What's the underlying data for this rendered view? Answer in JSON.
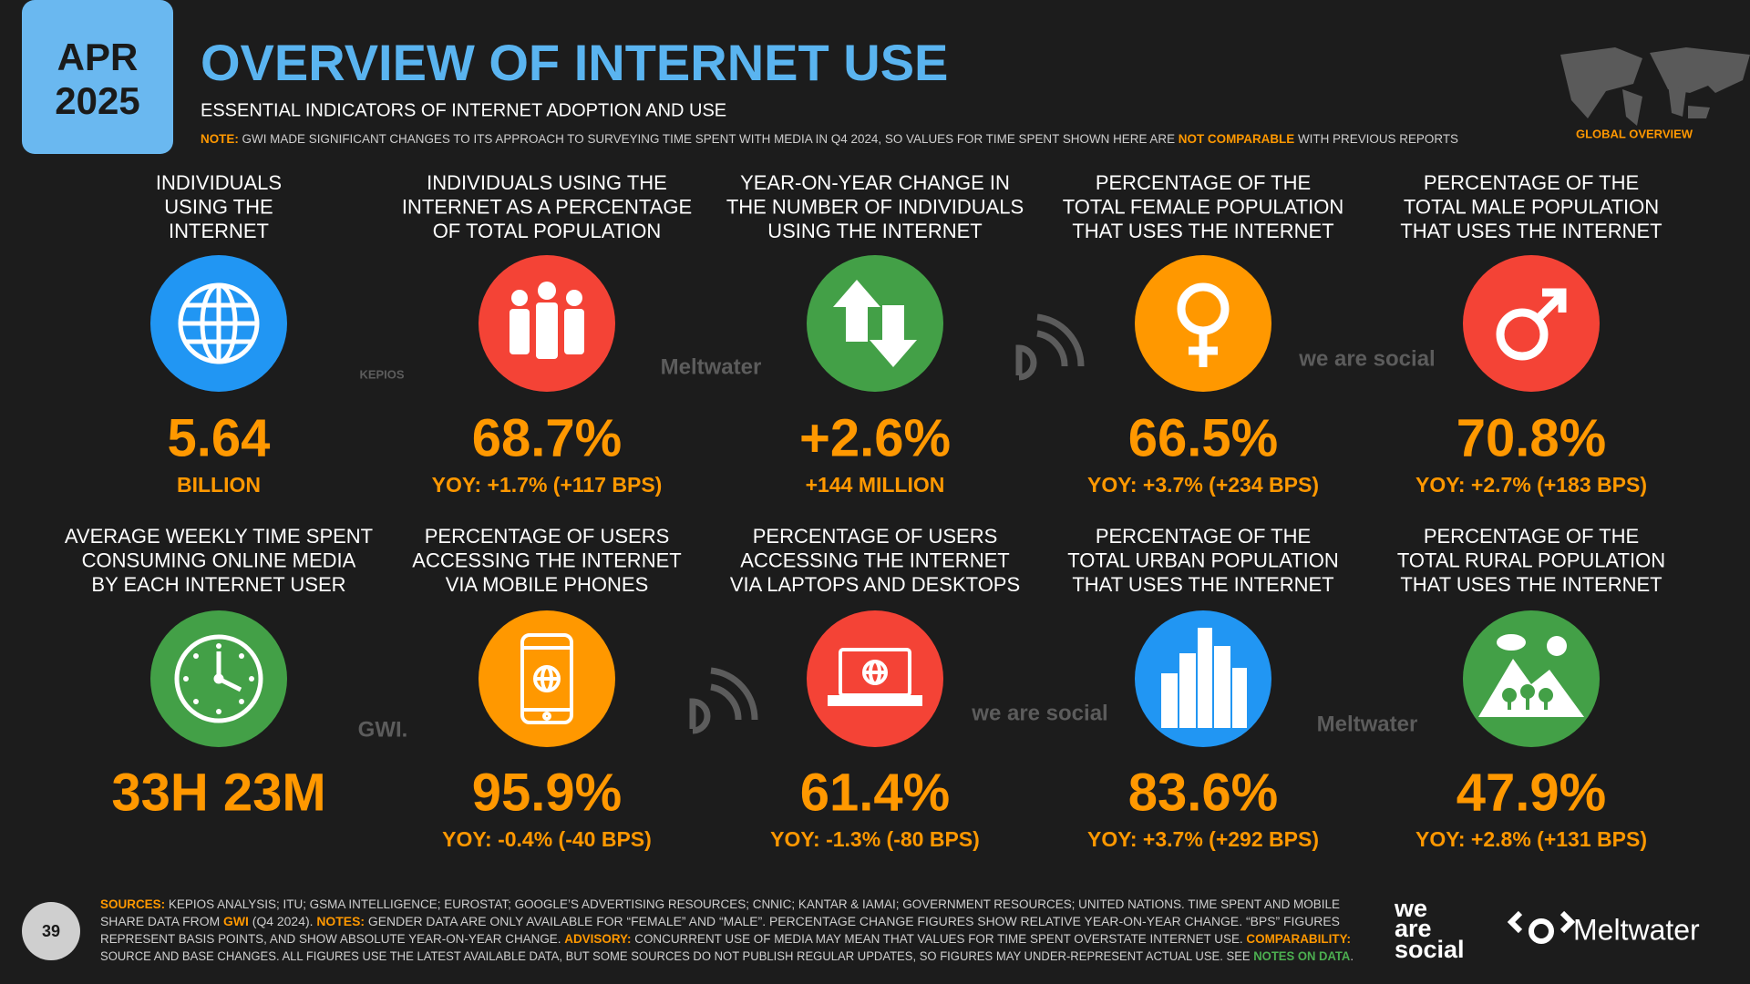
{
  "header": {
    "month": "APR",
    "year": "2025",
    "title": "OVERVIEW OF INTERNET USE",
    "subtitle": "ESSENTIAL INDICATORS OF INTERNET ADOPTION AND USE",
    "note": [
      {
        "text": "NOTE:",
        "kind": "highlight"
      },
      {
        "text": " GWI MADE SIGNIFICANT CHANGES TO ITS APPROACH TO SURVEYING TIME SPENT WITH MEDIA IN Q4 2024, SO VALUES FOR TIME SPENT SHOWN HERE ARE ",
        "kind": "plain"
      },
      {
        "text": "NOT COMPARABLE",
        "kind": "highlight"
      },
      {
        "text": " WITH PREVIOUS REPORTS",
        "kind": "plain"
      }
    ],
    "badge": "GLOBAL OVERVIEW"
  },
  "tiles": [
    {
      "label": [
        "INDIVIDUALS",
        "USING THE",
        "INTERNET"
      ],
      "value": "5.64",
      "sub": "BILLION",
      "color": "#2196f3"
    },
    {
      "label": [
        "INDIVIDUALS USING THE",
        "INTERNET AS A PERCENTAGE",
        "OF TOTAL POPULATION"
      ],
      "value": "68.7%",
      "sub": "YOY: +1.7% (+117 BPS)",
      "color": "#f44336"
    },
    {
      "label": [
        "YEAR-ON-YEAR CHANGE IN",
        "THE NUMBER OF INDIVIDUALS",
        "USING THE INTERNET"
      ],
      "value": "+2.6%",
      "sub": "+144 MILLION",
      "color": "#43a047"
    },
    {
      "label": [
        "PERCENTAGE OF THE",
        "TOTAL FEMALE POPULATION",
        "THAT USES THE INTERNET"
      ],
      "value": "66.5%",
      "sub": "YOY: +3.7% (+234 BPS)",
      "color": "#ff9800"
    },
    {
      "label": [
        "PERCENTAGE OF THE",
        "TOTAL MALE POPULATION",
        "THAT USES THE INTERNET"
      ],
      "value": "70.8%",
      "sub": "YOY: +2.7% (+183 BPS)",
      "color": "#f44336"
    },
    {
      "label": [
        "AVERAGE WEEKLY TIME SPENT",
        "CONSUMING ONLINE MEDIA",
        "BY EACH INTERNET USER"
      ],
      "value": "33H 23M",
      "sub": null,
      "color": "#43a047"
    },
    {
      "label": [
        "PERCENTAGE OF USERS",
        "ACCESSING THE INTERNET",
        "VIA MOBILE PHONES"
      ],
      "value": "95.9%",
      "sub": "YOY: -0.4% (-40 BPS)",
      "color": "#ff9800"
    },
    {
      "label": [
        "PERCENTAGE OF USERS",
        "ACCESSING THE INTERNET",
        "VIA LAPTOPS AND DESKTOPS"
      ],
      "value": "61.4%",
      "sub": "YOY: -1.3% (-80 BPS)",
      "color": "#f44336"
    },
    {
      "label": [
        "PERCENTAGE OF THE",
        "TOTAL URBAN POPULATION",
        "THAT USES THE INTERNET"
      ],
      "value": "83.6%",
      "sub": "YOY: +3.7% (+292 BPS)",
      "color": "#2196f3"
    },
    {
      "label": [
        "PERCENTAGE OF THE",
        "TOTAL RURAL POPULATION",
        "THAT USES THE INTERNET"
      ],
      "value": "47.9%",
      "sub": "YOY: +2.8% (+131 BPS)",
      "color": "#43a047"
    }
  ],
  "watermarks": [
    "KEPIOS",
    "Meltwater",
    "we are social",
    "GWI.",
    "we are social",
    "Meltwater"
  ],
  "footer": {
    "page": "39",
    "lines": [
      [
        {
          "text": "SOURCES:",
          "kind": "highlight"
        },
        {
          "text": " KEPIOS ANALYSIS; ITU; GSMA INTELLIGENCE; EUROSTAT; GOOGLE’S ADVERTISING RESOURCES; CNNIC; KANTAR & IAMAI; GOVERNMENT RESOURCES; UNITED NATIONS. TIME SPENT AND MOBILE",
          "kind": "plain"
        }
      ],
      [
        {
          "text": "SHARE DATA FROM ",
          "kind": "plain"
        },
        {
          "text": "GWI",
          "kind": "highlight"
        },
        {
          "text": " (Q4 2024). ",
          "kind": "plain"
        },
        {
          "text": "NOTES:",
          "kind": "highlight"
        },
        {
          "text": " GENDER DATA ARE ONLY AVAILABLE FOR “FEMALE” AND “MALE”. PERCENTAGE CHANGE FIGURES SHOW RELATIVE YEAR-ON-YEAR CHANGE. “BPS” FIGURES",
          "kind": "plain"
        }
      ],
      [
        {
          "text": "REPRESENT BASIS POINTS, AND SHOW ABSOLUTE YEAR-ON-YEAR CHANGE. ",
          "kind": "plain"
        },
        {
          "text": "ADVISORY:",
          "kind": "highlight"
        },
        {
          "text": " CONCURRENT USE OF MEDIA MAY MEAN THAT VALUES FOR TIME SPENT OVERSTATE INTERNET USE. ",
          "kind": "plain"
        },
        {
          "text": "COMPARABILITY:",
          "kind": "highlight"
        }
      ],
      [
        {
          "text": "SOURCE AND BASE CHANGES. ALL FIGURES USE THE LATEST AVAILABLE DATA, BUT SOME SOURCES DO NOT PUBLISH REGULAR UPDATES, SO FIGURES MAY UNDER-REPRESENT ACTUAL USE. SEE ",
          "kind": "plain"
        },
        {
          "text": "NOTES ON DATA",
          "kind": "link"
        },
        {
          "text": ".",
          "kind": "plain"
        }
      ]
    ],
    "logos": [
      "we",
      "are",
      "social",
      "Meltwater"
    ]
  }
}
